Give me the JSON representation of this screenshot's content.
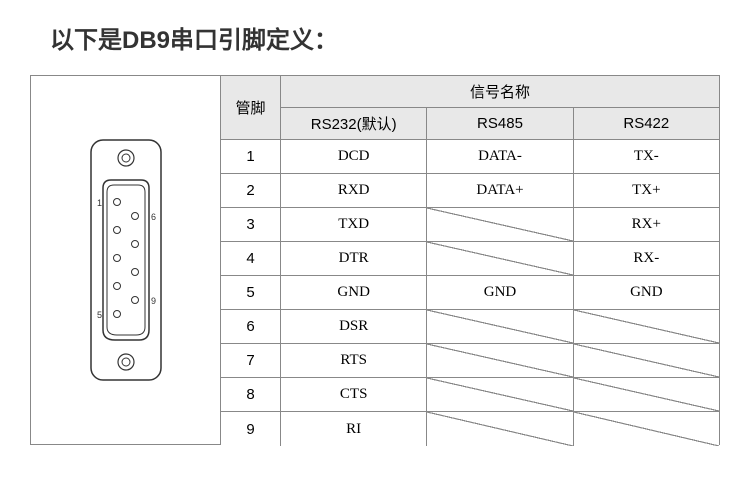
{
  "title": "以下是DB9串口引脚定义：",
  "headers": {
    "pin": "管脚",
    "signal": "信号名称",
    "cols": [
      "RS232(默认)",
      "RS485",
      "RS422"
    ]
  },
  "rows": [
    {
      "pin": "1",
      "rs232": "DCD",
      "rs485": "DATA-",
      "rs422": "TX-"
    },
    {
      "pin": "2",
      "rs232": "RXD",
      "rs485": "DATA+",
      "rs422": "TX+"
    },
    {
      "pin": "3",
      "rs232": "TXD",
      "rs485": null,
      "rs422": "RX+"
    },
    {
      "pin": "4",
      "rs232": "DTR",
      "rs485": null,
      "rs422": "RX-"
    },
    {
      "pin": "5",
      "rs232": "GND",
      "rs485": "GND",
      "rs422": "GND"
    },
    {
      "pin": "6",
      "rs232": "DSR",
      "rs485": null,
      "rs422": null
    },
    {
      "pin": "7",
      "rs232": "RTS",
      "rs485": null,
      "rs422": null
    },
    {
      "pin": "8",
      "rs232": "CTS",
      "rs485": null,
      "rs422": null
    },
    {
      "pin": "9",
      "rs232": "RI",
      "rs485": null,
      "rs422": null
    }
  ],
  "connector": {
    "plate_fill": "#ffffff",
    "plate_stroke": "#333333",
    "pin_numbers_left": "5",
    "pin_numbers_right_top": "9",
    "pin_numbers_right_bottom": "6",
    "pin_numbers_top": "1"
  },
  "style": {
    "border_color": "#888888",
    "header_bg": "#e8e8e8",
    "cell_bg": "#ffffff",
    "font_size_title": 24,
    "font_size_cell": 15
  }
}
